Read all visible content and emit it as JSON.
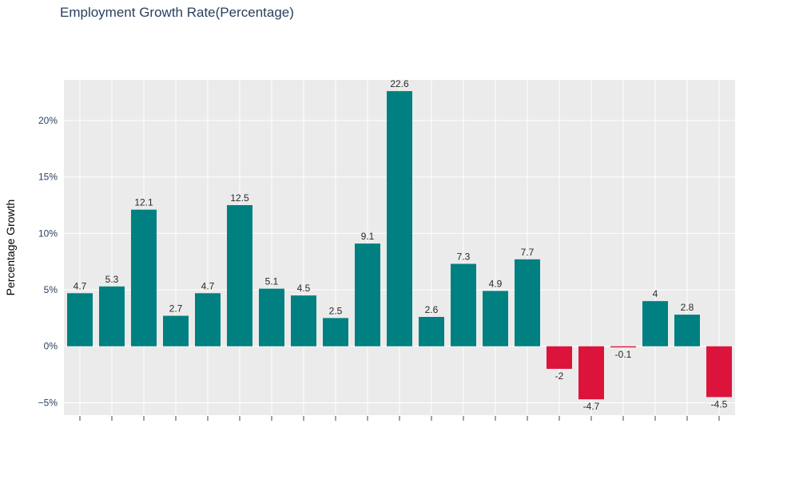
{
  "chart_data": {
    "type": "bar",
    "title": "Employment Growth Rate(Percentage)",
    "xlabel": "",
    "ylabel": "Percentage Growth",
    "ylim": [
      -6.1,
      23.6
    ],
    "yticks": [
      -5,
      0,
      5,
      10,
      15,
      20
    ],
    "ytick_labels": [
      "−5%",
      "0%",
      "5%",
      "10%",
      "15%",
      "20%"
    ],
    "x_tick_labels_shown": false,
    "grid": true,
    "values": [
      4.7,
      5.3,
      12.1,
      2.7,
      4.7,
      12.5,
      5.1,
      4.5,
      2.5,
      9.1,
      22.6,
      2.6,
      7.3,
      4.9,
      7.7,
      -2,
      -4.7,
      -0.1,
      4,
      2.8,
      -4.5
    ],
    "data_labels": [
      "4.7",
      "5.3",
      "12.1",
      "2.7",
      "4.7",
      "12.5",
      "5.1",
      "4.5",
      "2.5",
      "9.1",
      "22.6",
      "2.6",
      "7.3",
      "4.9",
      "7.7",
      "-2",
      "-4.7",
      "-0.1",
      "4",
      "2.8",
      "-4.5"
    ],
    "colors": {
      "positive": "#008080",
      "negative": "#dc143c",
      "plot_background": "#ebebeb",
      "gridline": "#ffffff",
      "axis_text": "#2a3f5f",
      "tick_mark": "#444444"
    }
  }
}
